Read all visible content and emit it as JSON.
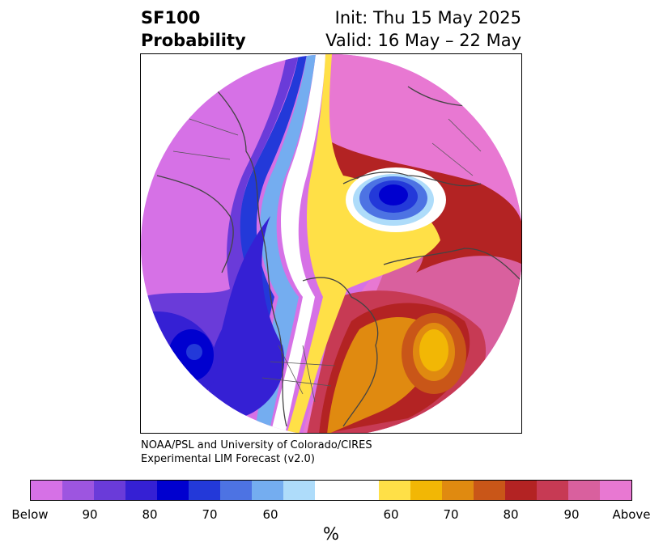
{
  "title": {
    "left_line1": "SF100",
    "left_line2": "Probability",
    "right_line1": "Init: Thu 15 May 2025",
    "right_line2": "Valid: 16 May – 22 May"
  },
  "credit": {
    "line1": "NOAA/PSL and University of Colorado/CIRES",
    "line2": "Experimental LIM Forecast (v2.0)"
  },
  "colorbar": {
    "units": "%",
    "ticks": [
      "Below",
      "90",
      "80",
      "70",
      "60",
      "60",
      "70",
      "80",
      "90",
      "Above"
    ],
    "colors": [
      "#d671e6",
      "#9d55e0",
      "#6a3bd9",
      "#3520d4",
      "#0000cf",
      "#2339d9",
      "#4d73e3",
      "#74adf0",
      "#aedcfa",
      "#ffffff",
      "#ffe047",
      "#f2b705",
      "#e08a10",
      "#c95618",
      "#b32323",
      "#c73a54",
      "#d9609e",
      "#e878d2"
    ]
  },
  "map": {
    "projection": "north-polar stereographic",
    "features": [
      "coastlines",
      "country borders",
      "state/province borders"
    ],
    "colors": {
      "below_strong": "#0000cf",
      "below": "#d671e6",
      "above": "#e878d2",
      "above_moderate": "#c73a54",
      "near_normal": "#ffffff"
    }
  }
}
